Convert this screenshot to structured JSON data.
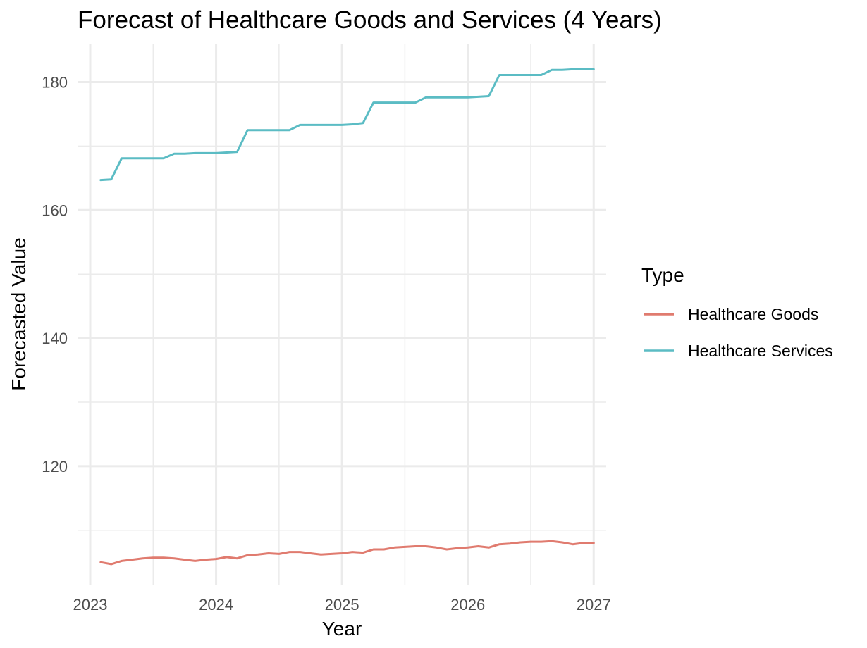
{
  "chart_data": {
    "type": "line",
    "title": "Forecast of Healthcare Goods and Services (4 Years)",
    "xlabel": "Year",
    "ylabel": "Forecasted Value",
    "x_ticks": [
      "2023",
      "2024",
      "2025",
      "2026",
      "2027"
    ],
    "y_ticks": [
      120,
      140,
      160,
      180
    ],
    "xlim": [
      2023.0,
      2027.2
    ],
    "ylim": [
      101.5,
      186
    ],
    "grid": true,
    "legend": {
      "title": "Type",
      "position": "right"
    },
    "colors": {
      "Healthcare Goods": "#E07B6F",
      "Healthcare Services": "#5BBCC4"
    },
    "x": [
      2023.083,
      2023.167,
      2023.25,
      2023.333,
      2023.417,
      2023.5,
      2023.583,
      2023.667,
      2023.75,
      2023.833,
      2023.917,
      2024.0,
      2024.083,
      2024.167,
      2024.25,
      2024.333,
      2024.417,
      2024.5,
      2024.583,
      2024.667,
      2024.75,
      2024.833,
      2024.917,
      2025.0,
      2025.083,
      2025.167,
      2025.25,
      2025.333,
      2025.417,
      2025.5,
      2025.583,
      2025.667,
      2025.75,
      2025.833,
      2025.917,
      2026.0,
      2026.083,
      2026.167,
      2026.25,
      2026.333,
      2026.417,
      2026.5,
      2026.583,
      2026.667,
      2026.75,
      2026.833,
      2026.917,
      2027.0
    ],
    "series": [
      {
        "name": "Healthcare Goods",
        "values": [
          105.0,
          104.7,
          105.2,
          105.4,
          105.6,
          105.7,
          105.7,
          105.6,
          105.4,
          105.2,
          105.4,
          105.5,
          105.8,
          105.6,
          106.1,
          106.2,
          106.4,
          106.3,
          106.6,
          106.6,
          106.4,
          106.2,
          106.3,
          106.4,
          106.6,
          106.5,
          107.0,
          107.0,
          107.3,
          107.4,
          107.5,
          107.5,
          107.3,
          107.0,
          107.2,
          107.3,
          107.5,
          107.3,
          107.8,
          107.9,
          108.1,
          108.2,
          108.2,
          108.3,
          108.1,
          107.8,
          108.0,
          108.0
        ]
      },
      {
        "name": "Healthcare Services",
        "values": [
          164.7,
          164.8,
          168.1,
          168.1,
          168.1,
          168.1,
          168.1,
          168.8,
          168.8,
          168.9,
          168.9,
          168.9,
          169.0,
          169.1,
          172.5,
          172.5,
          172.5,
          172.5,
          172.5,
          173.3,
          173.3,
          173.3,
          173.3,
          173.3,
          173.4,
          173.6,
          176.8,
          176.8,
          176.8,
          176.8,
          176.8,
          177.6,
          177.6,
          177.6,
          177.6,
          177.6,
          177.7,
          177.8,
          181.1,
          181.1,
          181.1,
          181.1,
          181.1,
          181.9,
          181.9,
          182.0,
          182.0,
          182.0
        ]
      }
    ]
  }
}
